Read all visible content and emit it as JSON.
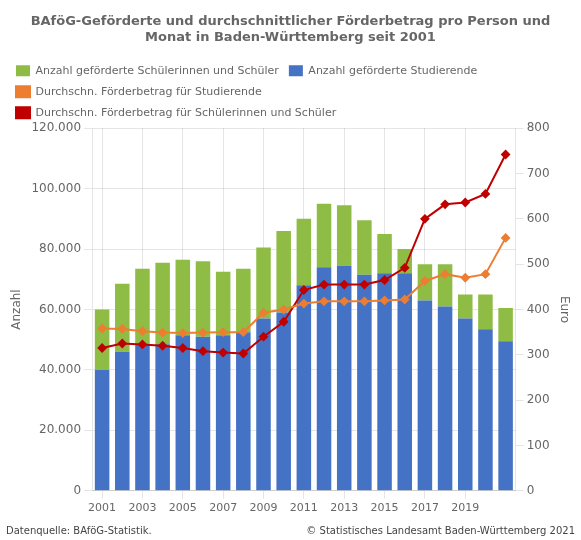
{
  "chart_data": {
    "type": "bar",
    "title": "BAföG-Geförderte und durchschnittlicher Förderbetrag pro Person und\nMonat in Baden-Württemberg seit 2001",
    "categories": [
      "2001",
      null,
      "2003",
      null,
      "2005",
      null,
      "2007",
      null,
      "2009",
      null,
      "2011",
      null,
      "2013",
      null,
      "2015",
      null,
      "2017",
      null,
      "2019",
      null,
      null
    ],
    "series": [
      {
        "name": "Anzahl geförderte Studierende",
        "type": "bar",
        "color": "#4472C4",
        "values": [
          40000,
          46000,
          48500,
          48500,
          51500,
          51000,
          51500,
          52500,
          57000,
          59000,
          68000,
          74000,
          74500,
          71500,
          72000,
          72000,
          63000,
          61000,
          57000,
          53500,
          49500
        ]
      },
      {
        "name": "Anzahl geförderte Schülerinnen und Schüler",
        "type": "bar",
        "color": "#8FBC45",
        "values": [
          20000,
          22500,
          25000,
          27000,
          25000,
          25000,
          21000,
          21000,
          23500,
          27000,
          22000,
          21000,
          20000,
          18000,
          13000,
          8000,
          12000,
          14000,
          8000,
          11500,
          11000
        ]
      },
      {
        "name": "Durchschn. Förderbetrag für Studierende",
        "type": "line",
        "axis": "y2",
        "color": "#ED7D31",
        "marker": "diamond",
        "values": [
          358,
          357,
          352,
          349,
          348,
          349,
          350,
          350,
          393,
          400,
          413,
          418,
          418,
          418,
          420,
          422,
          463,
          478,
          470,
          478,
          558
        ]
      },
      {
        "name": "Durchschn. Förderbetrag für Schülerinnen und Schüler",
        "type": "line",
        "axis": "y2",
        "color": "#C00000",
        "marker": "diamond",
        "values": [
          315,
          325,
          323,
          320,
          315,
          308,
          305,
          303,
          340,
          373,
          443,
          455,
          455,
          455,
          465,
          492,
          600,
          632,
          636,
          655,
          742
        ]
      }
    ],
    "stacked": true,
    "ylabel": "Anzahl",
    "ylim": [
      0,
      120000
    ],
    "yticks": [
      0,
      {
        "value": 20000,
        "label": "20.000"
      },
      {
        "value": 40000,
        "label": "40.000"
      },
      {
        "value": 60000,
        "label": "60.000"
      },
      {
        "value": 80000,
        "label": "80.000"
      },
      {
        "value": 100000,
        "label": "100.000"
      },
      {
        "value": 120000,
        "label": "120.000"
      }
    ],
    "y2label": "Euro",
    "y2lim": [
      0,
      800
    ],
    "y2ticks": [
      0,
      100,
      200,
      300,
      400,
      500,
      600,
      700,
      800
    ],
    "grid": true,
    "legend": "upper left",
    "annotations": [
      "Datenquelle: BAföG-Statistik.",
      "© Statistisches Landesamt Baden-Württemberg 2021"
    ]
  }
}
